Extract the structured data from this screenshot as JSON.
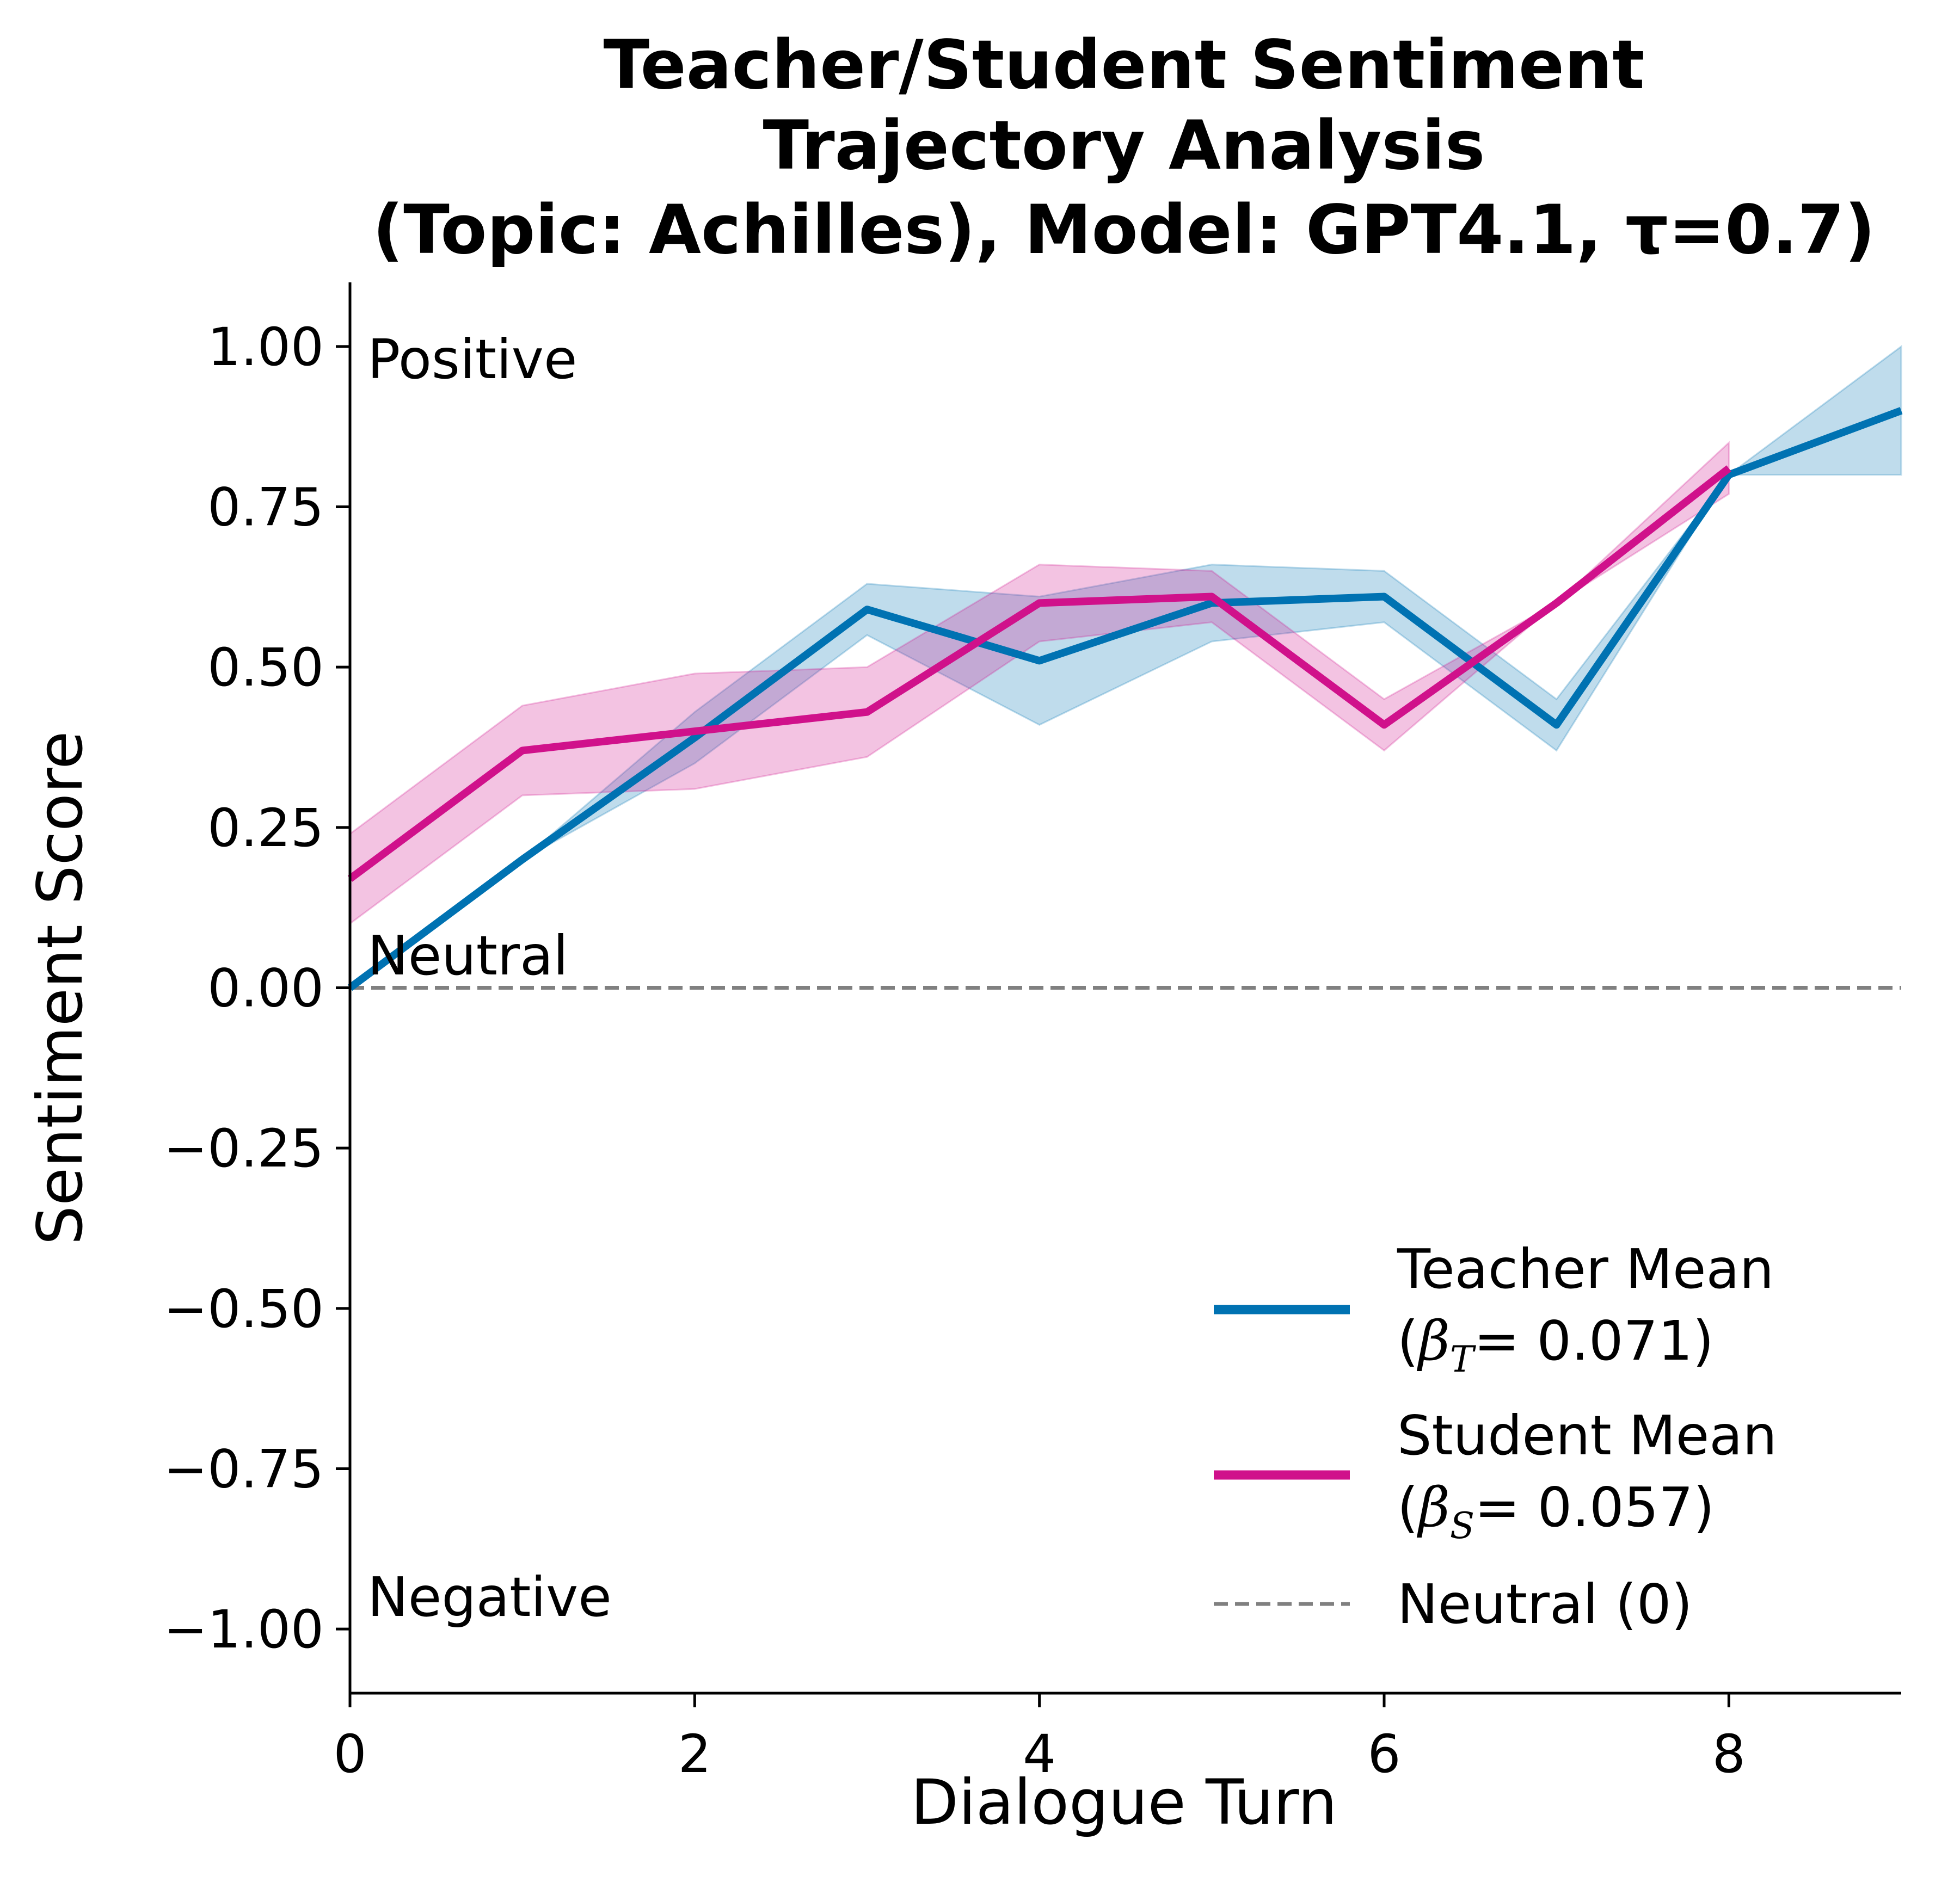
{
  "chart_data": {
    "type": "line",
    "title": [
      "Teacher/Student Sentiment",
      "Trajectory Analysis",
      "(Topic: Achilles), Model: GPT4.1, τ=0.7)"
    ],
    "xlabel": "Dialogue Turn",
    "ylabel": "Sentiment Score",
    "xlim": [
      0,
      9
    ],
    "ylim": [
      -1.1,
      1.1
    ],
    "x_ticks": [
      0,
      2,
      4,
      6,
      8
    ],
    "x_tick_labels": [
      "0",
      "2",
      "4",
      "6",
      "8"
    ],
    "y_ticks": [
      1.0,
      0.75,
      0.5,
      0.25,
      0.0,
      -0.25,
      -0.5,
      -0.75,
      -1.0
    ],
    "y_tick_labels": [
      "1.00",
      "0.75",
      "0.50",
      "0.25",
      "0.00",
      "−0.25",
      "−0.50",
      "−0.75",
      "−1.00"
    ],
    "grid": false,
    "legend_position": "lower-right",
    "annotations": {
      "positive": "Positive",
      "neutral": "Neutral",
      "negative": "Negative"
    },
    "series": [
      {
        "key": "teacher",
        "name": "Teacher Mean",
        "beta_sym": "β",
        "beta_sub": "T",
        "beta_value": "= 0.071)",
        "color": "#0072b2",
        "x": [
          0,
          1,
          2,
          3,
          4,
          5,
          6,
          7,
          8,
          9
        ],
        "y": [
          0.0,
          0.2,
          0.39,
          0.59,
          0.51,
          0.6,
          0.61,
          0.41,
          0.8,
          0.9
        ],
        "lower": [
          0.0,
          0.2,
          0.35,
          0.55,
          0.41,
          0.54,
          0.57,
          0.37,
          0.8,
          0.8
        ],
        "upper": [
          0.0,
          0.2,
          0.43,
          0.63,
          0.61,
          0.66,
          0.65,
          0.45,
          0.8,
          1.0
        ]
      },
      {
        "key": "student",
        "name": "Student Mean",
        "beta_sym": "β",
        "beta_sub": "S",
        "beta_value": "= 0.057)",
        "color": "#d0118b",
        "x": [
          0,
          1,
          2,
          3,
          4,
          5,
          6,
          7,
          8
        ],
        "y": [
          0.17,
          0.37,
          0.4,
          0.43,
          0.6,
          0.61,
          0.41,
          0.6,
          0.81
        ],
        "lower": [
          0.1,
          0.3,
          0.31,
          0.36,
          0.54,
          0.57,
          0.37,
          0.6,
          0.77
        ],
        "upper": [
          0.24,
          0.44,
          0.49,
          0.5,
          0.66,
          0.65,
          0.45,
          0.6,
          0.85
        ]
      }
    ],
    "reference_line": {
      "name": "Neutral (0)",
      "y": 0,
      "color": "#808080",
      "style": "dashed"
    }
  }
}
